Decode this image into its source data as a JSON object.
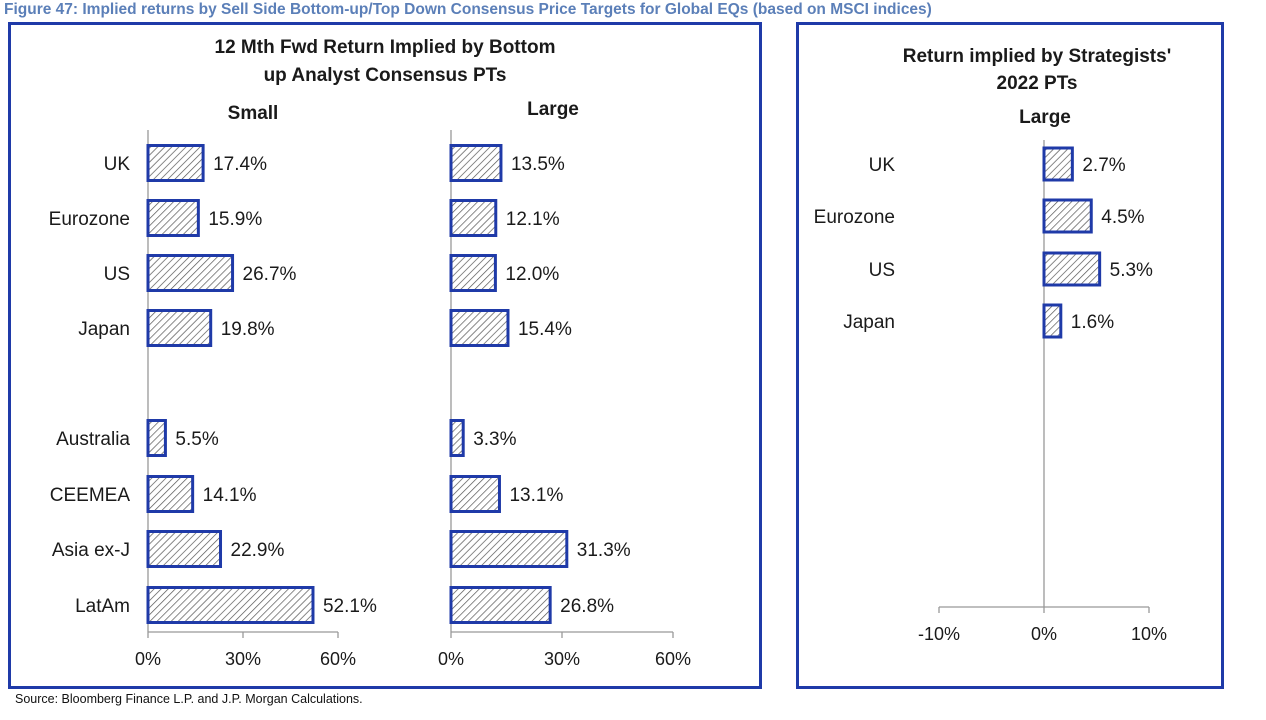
{
  "figure_title": "Figure 47: Implied returns by Sell Side Bottom-up/Top Down Consensus Price Targets for Global EQs (based on MSCI indices)",
  "source": "Source: Bloomberg Finance L.P. and J.P. Morgan Calculations.",
  "colors": {
    "bar_stroke": "#1f3aa8",
    "hatch": "#555555",
    "axis": "#999999",
    "title_blue": "#5b7fb8"
  },
  "left_panel": {
    "title_line1": "12 Mth Fwd Return Implied  by Bottom",
    "title_line2": "up Analyst Consensus PTs"
  },
  "right_panel": {
    "title_line1": "Return implied  by Strategists'",
    "title_line2": "2022 PTs"
  },
  "chart_data": [
    {
      "type": "bar",
      "orientation": "horizontal",
      "subtitle": "Small",
      "categories": [
        "UK",
        "Eurozone",
        "US",
        "Japan",
        "Australia",
        "CEEMEA",
        "Asia ex-J",
        "LatAm"
      ],
      "values": [
        17.4,
        15.9,
        26.7,
        19.8,
        5.5,
        14.1,
        22.9,
        52.1
      ],
      "value_labels": [
        "17.4%",
        "15.9%",
        "26.7%",
        "19.8%",
        "5.5%",
        "14.1%",
        "22.9%",
        "52.1%"
      ],
      "xlim": [
        0,
        60
      ],
      "xticks": [
        "0%",
        "30%",
        "60%"
      ],
      "grid": false
    },
    {
      "type": "bar",
      "orientation": "horizontal",
      "subtitle": "Large",
      "categories": [
        "UK",
        "Eurozone",
        "US",
        "Japan",
        "Australia",
        "CEEMEA",
        "Asia ex-J",
        "LatAm"
      ],
      "values": [
        13.5,
        12.1,
        12.0,
        15.4,
        3.3,
        13.1,
        31.3,
        26.8
      ],
      "value_labels": [
        "13.5%",
        "12.1%",
        "12.0%",
        "15.4%",
        "3.3%",
        "13.1%",
        "31.3%",
        "26.8%"
      ],
      "xlim": [
        0,
        60
      ],
      "xticks": [
        "0%",
        "30%",
        "60%"
      ],
      "grid": false
    },
    {
      "type": "bar",
      "orientation": "horizontal",
      "subtitle": "Large",
      "categories": [
        "UK",
        "Eurozone",
        "US",
        "Japan"
      ],
      "values": [
        2.7,
        4.5,
        5.3,
        1.6
      ],
      "value_labels": [
        "2.7%",
        "4.5%",
        "5.3%",
        "1.6%"
      ],
      "xlim": [
        -10,
        10
      ],
      "xticks": [
        "-10%",
        "0%",
        "10%"
      ],
      "grid": false
    }
  ]
}
